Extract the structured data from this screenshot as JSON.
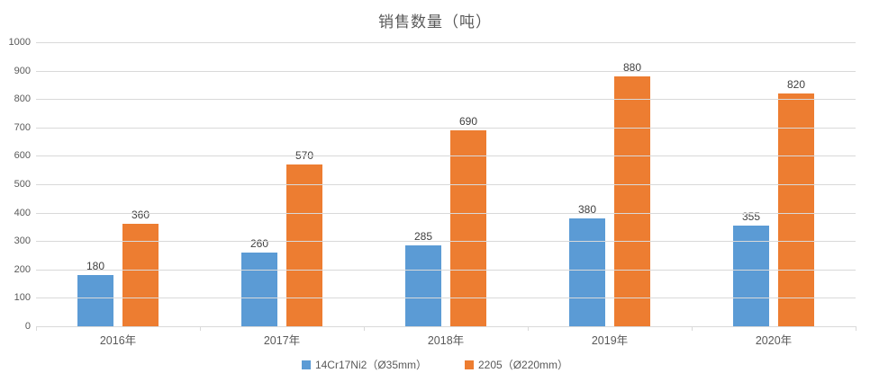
{
  "title": "销售数量（吨）",
  "colors": {
    "series_blue": "#5b9bd5",
    "series_orange": "#ed7d31",
    "gridline": "#d9d9d9",
    "axis_text": "#595959",
    "data_label_text": "#404040",
    "background": "#ffffff"
  },
  "legend": {
    "items": [
      {
        "label": "14Cr17Ni2（Ø35mm）",
        "color": "#5b9bd5"
      },
      {
        "label": "2205（Ø220mm）",
        "color": "#ed7d31"
      }
    ]
  },
  "chart_data": {
    "type": "bar",
    "title": "销售数量（吨）",
    "categories": [
      "2016年",
      "2017年",
      "2018年",
      "2019年",
      "2020年"
    ],
    "series": [
      {
        "name": "14Cr17Ni2（Ø35mm）",
        "color": "#5b9bd5",
        "values": [
          180,
          260,
          285,
          380,
          355
        ]
      },
      {
        "name": "2205（Ø220mm）",
        "color": "#ed7d31",
        "values": [
          360,
          570,
          690,
          880,
          820
        ]
      }
    ],
    "xlabel": "",
    "ylabel": "",
    "ylim": [
      0,
      1000
    ],
    "ytick_step": 100,
    "grid": true,
    "data_labels": true,
    "legend_position": "bottom"
  }
}
